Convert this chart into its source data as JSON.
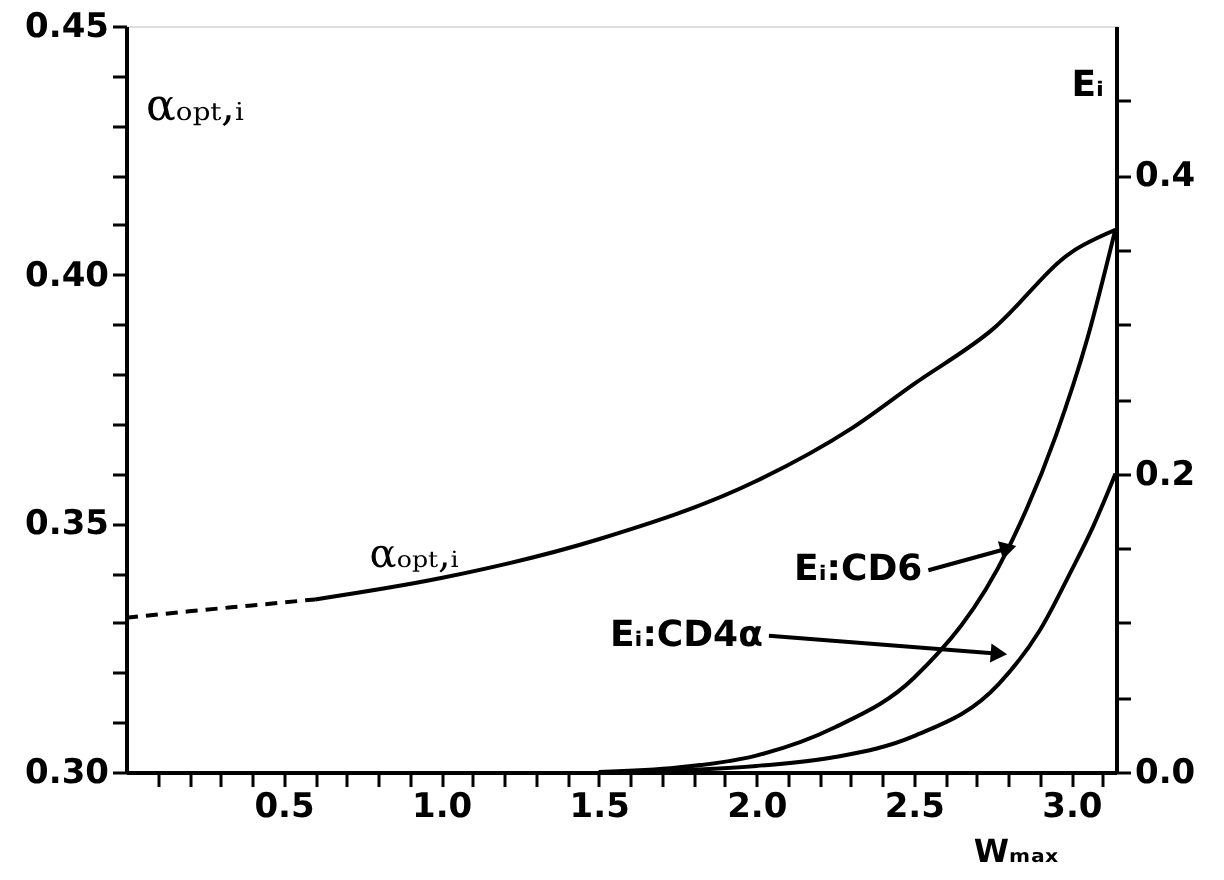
{
  "chart_data": {
    "type": "line",
    "xlabel": "Wₘₐₓ",
    "ylabel": "αₒₚₜ,ᵢ",
    "y2label": "Eᵢ",
    "xlim": [
      0,
      3.1416
    ],
    "ylim": [
      0.3,
      0.45
    ],
    "y2lim": [
      0,
      0.5
    ],
    "xticks": [
      {
        "value": 0.1,
        "label": null
      },
      {
        "value": 0.2,
        "label": null
      },
      {
        "value": 0.3,
        "label": null
      },
      {
        "value": 0.4,
        "label": null
      },
      {
        "value": 0.5,
        "label": "0.5"
      },
      {
        "value": 0.6,
        "label": null
      },
      {
        "value": 0.7,
        "label": null
      },
      {
        "value": 0.8,
        "label": null
      },
      {
        "value": 0.9,
        "label": null
      },
      {
        "value": 1.0,
        "label": "1.0"
      },
      {
        "value": 1.1,
        "label": null
      },
      {
        "value": 1.2,
        "label": null
      },
      {
        "value": 1.3,
        "label": null
      },
      {
        "value": 1.4,
        "label": null
      },
      {
        "value": 1.5,
        "label": "1.5"
      },
      {
        "value": 1.6,
        "label": null
      },
      {
        "value": 1.7,
        "label": null
      },
      {
        "value": 1.8,
        "label": null
      },
      {
        "value": 1.9,
        "label": null
      },
      {
        "value": 2.0,
        "label": "2.0"
      },
      {
        "value": 2.1,
        "label": null
      },
      {
        "value": 2.2,
        "label": null
      },
      {
        "value": 2.3,
        "label": null
      },
      {
        "value": 2.4,
        "label": null
      },
      {
        "value": 2.5,
        "label": "2.5"
      },
      {
        "value": 2.6,
        "label": null
      },
      {
        "value": 2.7,
        "label": null
      },
      {
        "value": 2.8,
        "label": null
      },
      {
        "value": 2.9,
        "label": null
      },
      {
        "value": 3.0,
        "label": "3.0"
      },
      {
        "value": 3.1,
        "label": null
      }
    ],
    "yticks": [
      {
        "value": 0.3,
        "label": "0.30"
      },
      {
        "value": 0.31,
        "label": null
      },
      {
        "value": 0.32,
        "label": null
      },
      {
        "value": 0.33,
        "label": null
      },
      {
        "value": 0.34,
        "label": null
      },
      {
        "value": 0.35,
        "label": "0.35"
      },
      {
        "value": 0.36,
        "label": null
      },
      {
        "value": 0.37,
        "label": null
      },
      {
        "value": 0.38,
        "label": null
      },
      {
        "value": 0.39,
        "label": null
      },
      {
        "value": 0.4,
        "label": "0.40"
      },
      {
        "value": 0.41,
        "label": null
      },
      {
        "value": 0.42,
        "label": null
      },
      {
        "value": 0.43,
        "label": null
      },
      {
        "value": 0.44,
        "label": null
      },
      {
        "value": 0.45,
        "label": "0.45"
      }
    ],
    "y2ticks": [
      {
        "value": 0.0,
        "label": "0.0"
      },
      {
        "value": 0.05,
        "label": null
      },
      {
        "value": 0.1,
        "label": null
      },
      {
        "value": 0.15,
        "label": null
      },
      {
        "value": 0.2,
        "label": "0.2"
      },
      {
        "value": 0.25,
        "label": null
      },
      {
        "value": 0.3,
        "label": null
      },
      {
        "value": 0.35,
        "label": null
      },
      {
        "value": 0.4,
        "label": "0.4"
      },
      {
        "value": 0.45,
        "label": null
      }
    ],
    "grid": false,
    "marker": "none",
    "series": [
      {
        "color": "#000000",
        "line_style": "dashed",
        "x": [
          0.0,
          0.2,
          0.4,
          0.6
        ],
        "values": [
          0.331,
          0.3323,
          0.3335,
          0.3347
        ]
      },
      {
        "color": "#000000",
        "line_style": "solid",
        "x": [
          0.6,
          1.0,
          1.5,
          2.0,
          2.3,
          2.5,
          2.75,
          3.0,
          3.14
        ],
        "values": [
          0.3347,
          0.339,
          0.3468,
          0.3585,
          0.369,
          0.378,
          0.389,
          0.4045,
          0.409
        ]
      },
      {
        "color": "#000000",
        "line_style": "solid",
        "axis": "y2",
        "x": [
          1.5,
          1.75,
          2.0,
          2.25,
          2.5,
          2.8,
          2.95,
          3.05,
          3.14
        ],
        "values": [
          0.0,
          0.003,
          0.011,
          0.03,
          0.063,
          0.15,
          0.225,
          0.29,
          0.364
        ]
      },
      {
        "color": "#000000",
        "line_style": "solid",
        "axis": "y2",
        "x": [
          1.6,
          2.0,
          2.25,
          2.5,
          2.77,
          2.9,
          3.0,
          3.07,
          3.14
        ],
        "values": [
          0.0,
          0.004,
          0.01,
          0.024,
          0.059,
          0.095,
          0.135,
          0.165,
          0.2
        ]
      }
    ],
    "annotations": [
      {
        "text": "αₒₚₜ,ᵢ",
        "x": 0.9,
        "y": 0.338
      },
      {
        "text": "Eᵢ:CD6",
        "x": 2.8,
        "y": 0.345
      },
      {
        "text": "Eᵢ:CD4α",
        "x": 2.77,
        "y": 0.3238
      }
    ]
  }
}
